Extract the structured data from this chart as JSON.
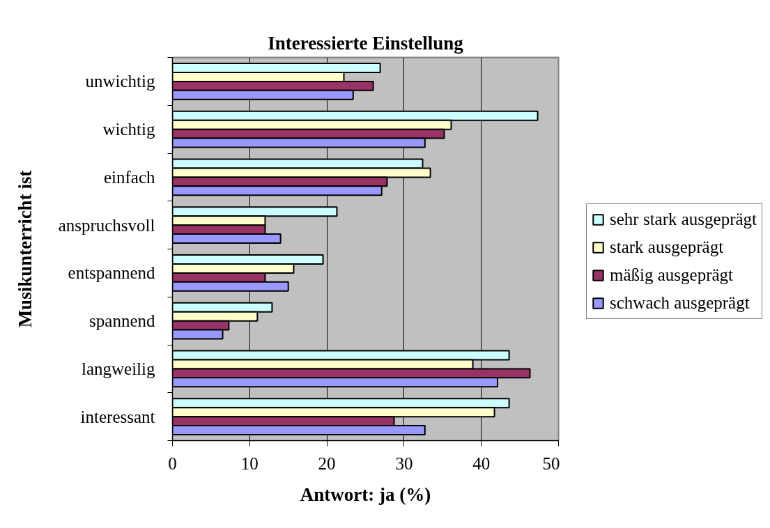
{
  "chart_data": {
    "type": "bar",
    "orientation": "horizontal",
    "title": "Interessierte Einstellung",
    "xlabel": "Antwort: ja (%)",
    "ylabel": "Musikunterricht ist",
    "categories": [
      "unwichtig",
      "wichtig",
      "einfach",
      "anspruchsvoll",
      "entspannend",
      "spannend",
      "langweilig",
      "interessant"
    ],
    "series": [
      {
        "name": "sehr stark ausgeprägt",
        "color": "#ccffff",
        "values": [
          26.9,
          47.3,
          32.4,
          21.3,
          19.5,
          12.9,
          43.6,
          43.6
        ]
      },
      {
        "name": "stark ausgeprägt",
        "color": "#ffffcc",
        "values": [
          22.2,
          36.1,
          33.4,
          12.0,
          15.7,
          11.0,
          38.9,
          41.7
        ]
      },
      {
        "name": "mäßig ausgeprägt",
        "color": "#993366",
        "values": [
          26.0,
          35.2,
          27.8,
          12.0,
          12.0,
          7.3,
          46.3,
          28.7
        ]
      },
      {
        "name": "schwach ausgeprägt",
        "color": "#9999ff",
        "values": [
          23.4,
          32.7,
          27.1,
          14.0,
          15.0,
          6.5,
          42.1,
          32.7
        ]
      }
    ],
    "xlim": [
      0,
      50
    ],
    "xticks": [
      0,
      10,
      20,
      30,
      40,
      50
    ],
    "grid": "x",
    "legend": "right"
  }
}
